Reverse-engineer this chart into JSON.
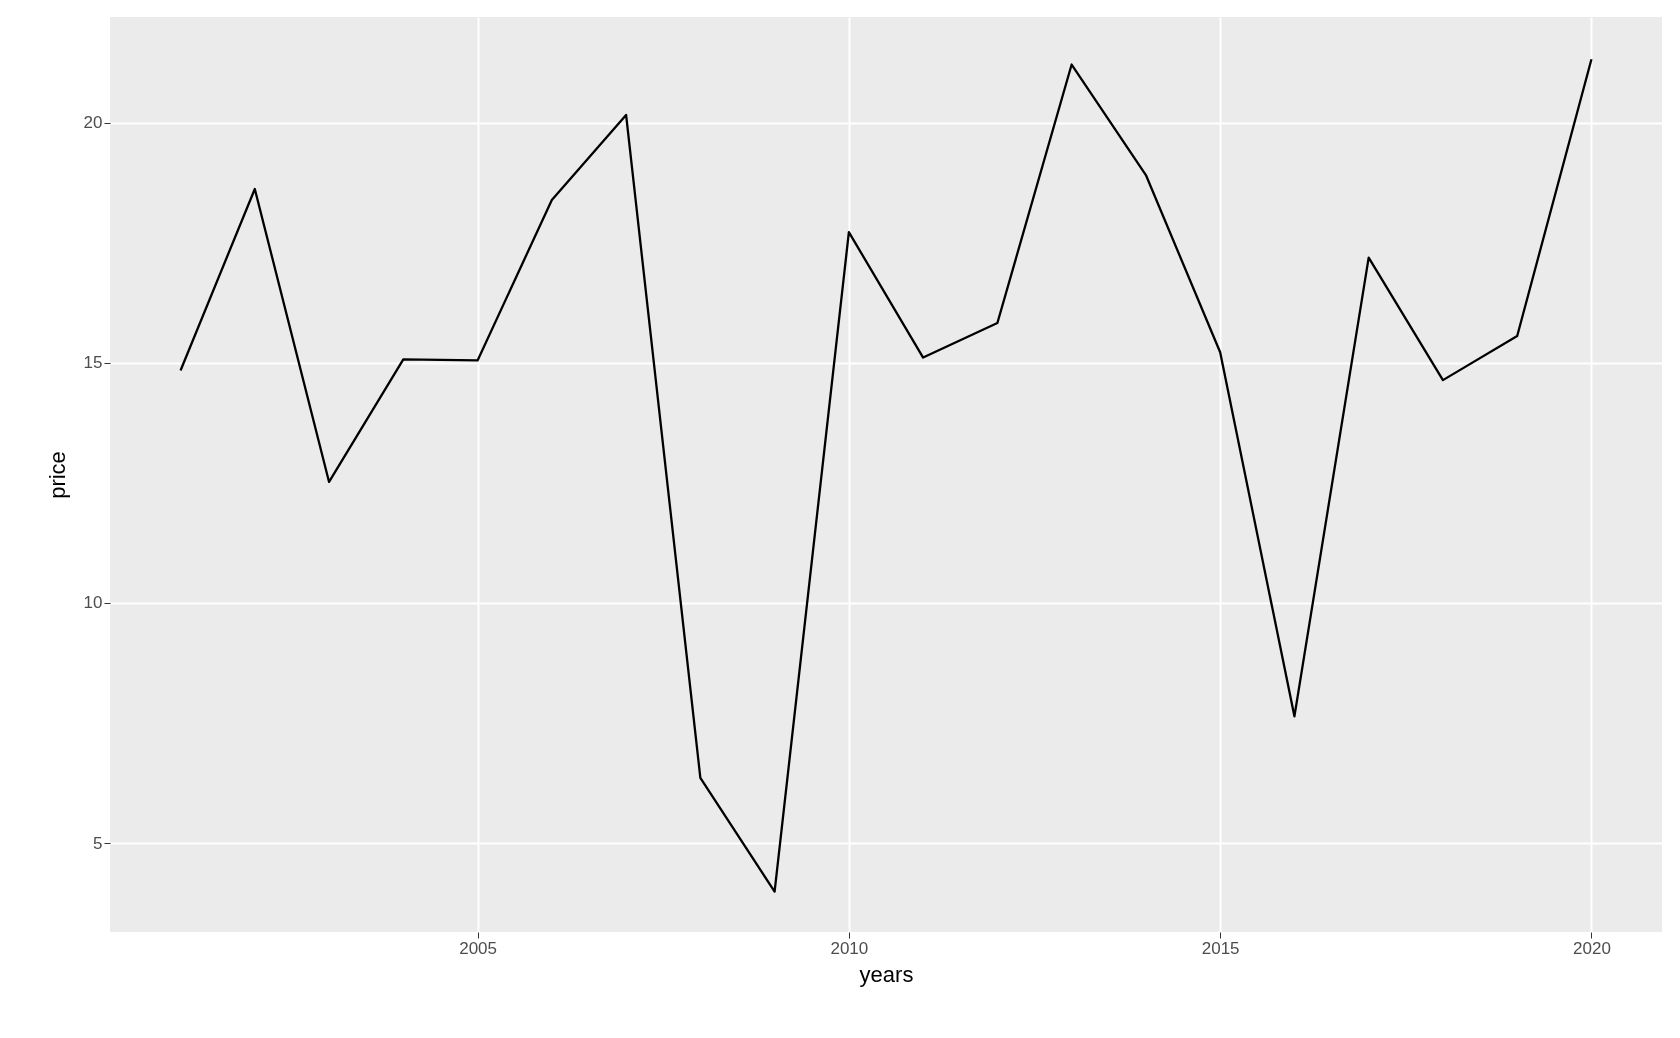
{
  "chart_data": {
    "type": "line",
    "xlabel": "years",
    "ylabel": "price",
    "x": [
      2001,
      2002,
      2003,
      2004,
      2005,
      2006,
      2007,
      2008,
      2009,
      2010,
      2011,
      2012,
      2013,
      2014,
      2015,
      2016,
      2017,
      2018,
      2019,
      2020
    ],
    "series": [
      {
        "color": "#000000",
        "values": [
          14.84,
          18.62,
          12.52,
          15.07,
          15.05,
          18.39,
          20.16,
          6.36,
          3.99,
          17.72,
          15.11,
          15.83,
          21.21,
          18.91,
          15.22,
          7.64,
          17.19,
          14.64,
          15.56,
          21.32
        ]
      }
    ],
    "xlim": [
      2000.05,
      2020.95
    ],
    "xticks": [
      2005,
      2010,
      2015,
      2020
    ],
    "ylim": [
      3.15,
      22.2
    ],
    "yticks": [
      5,
      10,
      15,
      20
    ],
    "grid": true,
    "marker": "none",
    "line_style": "solid"
  }
}
